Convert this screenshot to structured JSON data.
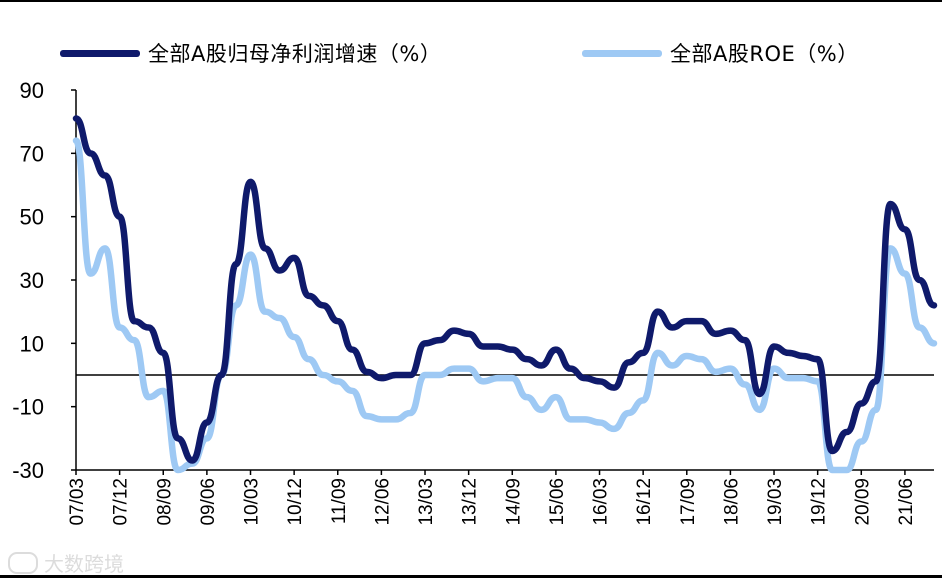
{
  "chart_data": {
    "type": "line",
    "title": "",
    "xlabel": "",
    "ylabel": "",
    "ylim": [
      -30,
      90
    ],
    "yticks": [
      90,
      70,
      50,
      30,
      10,
      -10,
      -30
    ],
    "xtick_labels": [
      "07/03",
      "07/12",
      "08/09",
      "09/06",
      "10/03",
      "10/12",
      "11/09",
      "12/06",
      "13/03",
      "13/12",
      "14/09",
      "15/06",
      "16/03",
      "16/12",
      "17/09",
      "18/06",
      "19/03",
      "19/12",
      "20/09",
      "21/06"
    ],
    "legend_position": "top",
    "grid": false,
    "series": [
      {
        "name": "全部A股归母净利润增速（%）",
        "color": "#0f1a6b",
        "x": [
          "07/03",
          "07/06",
          "07/09",
          "07/12",
          "08/03",
          "08/06",
          "08/09",
          "08/12",
          "09/03",
          "09/06",
          "09/09",
          "09/12",
          "10/03",
          "10/06",
          "10/09",
          "10/12",
          "11/03",
          "11/06",
          "11/09",
          "11/12",
          "12/03",
          "12/06",
          "12/09",
          "12/12",
          "13/03",
          "13/06",
          "13/09",
          "13/12",
          "14/03",
          "14/06",
          "14/09",
          "14/12",
          "15/03",
          "15/06",
          "15/09",
          "15/12",
          "16/03",
          "16/06",
          "16/09",
          "16/12",
          "17/03",
          "17/06",
          "17/09",
          "17/12",
          "18/03",
          "18/06",
          "18/09",
          "18/12",
          "19/03",
          "19/06",
          "19/09",
          "19/12",
          "20/03",
          "20/06",
          "20/09",
          "20/12",
          "21/03",
          "21/06",
          "21/09",
          "21/12"
        ],
        "values": [
          81,
          70,
          63,
          50,
          17,
          15,
          7,
          -20,
          -27,
          -15,
          0,
          35,
          61,
          40,
          33,
          37,
          25,
          22,
          17,
          8,
          1,
          -1,
          0,
          0,
          10,
          11,
          14,
          13,
          9,
          9,
          8,
          5,
          3,
          8,
          2,
          -1,
          -2,
          -4,
          4,
          7,
          20,
          15,
          17,
          17,
          13,
          14,
          11,
          -6,
          9,
          7,
          6,
          5,
          -24,
          -18,
          -9,
          -2,
          54,
          46,
          30,
          22
        ]
      },
      {
        "name": "全部A股ROE（%）",
        "color": "#9ec9f4",
        "x": [
          "07/03",
          "07/06",
          "07/09",
          "07/12",
          "08/03",
          "08/06",
          "08/09",
          "08/12",
          "09/03",
          "09/06",
          "09/09",
          "09/12",
          "10/03",
          "10/06",
          "10/09",
          "10/12",
          "11/03",
          "11/06",
          "11/09",
          "11/12",
          "12/03",
          "12/06",
          "12/09",
          "12/12",
          "13/03",
          "13/06",
          "13/09",
          "13/12",
          "14/03",
          "14/06",
          "14/09",
          "14/12",
          "15/03",
          "15/06",
          "15/09",
          "15/12",
          "16/03",
          "16/06",
          "16/09",
          "16/12",
          "17/03",
          "17/06",
          "17/09",
          "17/12",
          "18/03",
          "18/06",
          "18/09",
          "18/12",
          "19/03",
          "19/06",
          "19/09",
          "19/12",
          "20/03",
          "20/06",
          "20/09",
          "20/12",
          "21/03",
          "21/06",
          "21/09",
          "21/12"
        ],
        "values": [
          74,
          32,
          40,
          15,
          11,
          -7,
          -5,
          -30,
          -28,
          -20,
          0,
          22,
          38,
          20,
          18,
          12,
          5,
          0,
          -2,
          -5,
          -13,
          -14,
          -14,
          -12,
          0,
          0,
          2,
          2,
          -2,
          -1,
          -1,
          -7,
          -11,
          -7,
          -14,
          -14,
          -15,
          -17,
          -12,
          -8,
          7,
          3,
          6,
          5,
          1,
          2,
          -3,
          -11,
          2,
          -1,
          -1,
          -2,
          -30,
          -30,
          -21,
          -11,
          40,
          32,
          15,
          10
        ]
      }
    ]
  },
  "watermark": "大数跨境"
}
